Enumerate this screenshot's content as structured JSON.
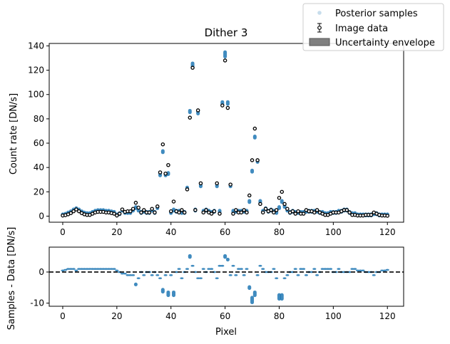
{
  "chart_data": [
    {
      "type": "scatter",
      "title": "Dither 3",
      "ylabel": "Count rate [DN/s]",
      "xlabel": "",
      "xlim": [
        -5,
        126
      ],
      "ylim": [
        -5,
        142
      ],
      "xticks": [
        0,
        20,
        40,
        60,
        80,
        100,
        120
      ],
      "yticks": [
        0,
        20,
        40,
        60,
        80,
        100,
        120,
        140
      ],
      "grid": false,
      "legend": {
        "placement": "top-right",
        "entries": [
          "Posterior samples",
          "Image data",
          "Uncertainty envelope"
        ]
      },
      "series": [
        {
          "name": "Image data",
          "x": [
            0,
            1,
            2,
            3,
            4,
            5,
            6,
            7,
            8,
            9,
            10,
            11,
            12,
            13,
            14,
            15,
            16,
            17,
            18,
            19,
            20,
            21,
            22,
            23,
            24,
            25,
            26,
            27,
            28,
            29,
            30,
            31,
            32,
            33,
            34,
            35,
            36,
            37,
            38,
            39,
            40,
            41,
            42,
            43,
            44,
            45,
            46,
            47,
            48,
            49,
            50,
            51,
            52,
            53,
            54,
            55,
            56,
            57,
            58,
            59,
            60,
            61,
            62,
            63,
            64,
            65,
            66,
            67,
            68,
            69,
            70,
            71,
            72,
            73,
            74,
            75,
            76,
            77,
            78,
            79,
            80,
            81,
            82,
            83,
            84,
            85,
            86,
            87,
            88,
            89,
            90,
            91,
            92,
            93,
            94,
            95,
            96,
            97,
            98,
            99,
            100,
            101,
            102,
            103,
            104,
            105,
            106,
            107,
            108,
            109,
            110,
            111,
            112,
            113,
            114,
            115,
            116,
            117,
            118,
            119,
            120
          ],
          "y": [
            0.5,
            0.8,
            1.5,
            2.5,
            4,
            5.5,
            4,
            2.5,
            1.5,
            1,
            1,
            2,
            3,
            3.5,
            3.5,
            3.5,
            3,
            3,
            2.5,
            2,
            0.5,
            2,
            5.5,
            3.5,
            4,
            4,
            6,
            11,
            7,
            3,
            5,
            3,
            3,
            6,
            3,
            8,
            36,
            59,
            35,
            42,
            4,
            12,
            4,
            3,
            5,
            3,
            22,
            81,
            122,
            5,
            87,
            27,
            3,
            5,
            3,
            2,
            4,
            27,
            2,
            91,
            128,
            89,
            26,
            2,
            5,
            3,
            3,
            5,
            3,
            17,
            46,
            72,
            46,
            10,
            3,
            6,
            4,
            5,
            3,
            5,
            15,
            20,
            10,
            6,
            3,
            4,
            2,
            4,
            2,
            2,
            5,
            4,
            4,
            3,
            5,
            3,
            2,
            1,
            1,
            2,
            3,
            3,
            3,
            4,
            5,
            5,
            3,
            1,
            1,
            0.5,
            0.5,
            0.5,
            1,
            1,
            1,
            3,
            2,
            1,
            0.5,
            0.5,
            0.3
          ]
        },
        {
          "name": "Posterior samples",
          "x": [
            0,
            1,
            2,
            3,
            4,
            5,
            6,
            7,
            8,
            9,
            10,
            11,
            12,
            13,
            14,
            15,
            16,
            17,
            18,
            19,
            20,
            21,
            22,
            23,
            24,
            25,
            26,
            27,
            28,
            29,
            30,
            31,
            32,
            33,
            34,
            35,
            36,
            37,
            38,
            39,
            40,
            41,
            42,
            43,
            44,
            45,
            46,
            47,
            48,
            49,
            50,
            51,
            52,
            53,
            54,
            55,
            56,
            57,
            58,
            59,
            60,
            61,
            62,
            63,
            64,
            65,
            66,
            67,
            68,
            69,
            70,
            71,
            72,
            73,
            74,
            75,
            76,
            77,
            78,
            79,
            80,
            81,
            82,
            83,
            84,
            85,
            86,
            87,
            88,
            89,
            90,
            91,
            92,
            93,
            94,
            95,
            96,
            97,
            98,
            99,
            100,
            101,
            102,
            103,
            104,
            105,
            106,
            107,
            108,
            109,
            110,
            111,
            112,
            113,
            114,
            115,
            116,
            117,
            118,
            119,
            120
          ],
          "y": [
            1,
            1.5,
            2.5,
            3.5,
            5,
            6,
            5,
            3.5,
            2.5,
            2,
            2,
            3,
            4,
            4.5,
            4.5,
            4.5,
            4,
            4,
            3.5,
            3,
            1,
            2,
            5,
            3,
            3,
            3,
            5,
            7,
            5,
            3,
            4,
            3,
            3,
            5,
            3,
            7,
            34,
            53,
            34,
            35,
            3,
            5,
            4,
            4,
            3,
            3,
            23,
            86,
            124,
            5,
            85,
            25,
            4,
            5,
            4,
            3,
            4,
            25,
            4,
            93,
            133,
            93,
            25,
            4,
            4,
            4,
            4,
            4,
            4,
            12,
            37,
            65,
            45,
            12,
            4,
            6,
            4,
            5,
            4,
            3,
            7,
            12,
            8,
            5,
            3,
            4,
            3,
            3,
            3,
            3,
            4,
            4,
            4,
            4,
            4,
            3,
            3,
            2,
            2,
            3,
            3,
            3,
            4,
            4,
            5,
            5,
            3,
            2,
            2,
            1,
            1,
            1,
            1,
            1,
            1,
            2,
            2,
            1,
            1,
            1,
            1
          ]
        }
      ]
    },
    {
      "type": "scatter",
      "title": "",
      "ylabel": "Samples - Data [DN/s]",
      "xlabel": "Pixel",
      "xlim": [
        -5,
        126
      ],
      "ylim": [
        -11,
        8
      ],
      "xticks": [
        0,
        20,
        40,
        60,
        80,
        100,
        120
      ],
      "yticks": [
        -10,
        0
      ],
      "grid": false,
      "reference_line": 0,
      "series": [
        {
          "name": "Samples - Data",
          "x": [
            0,
            1,
            2,
            3,
            4,
            5,
            6,
            7,
            8,
            9,
            10,
            11,
            12,
            13,
            14,
            15,
            16,
            17,
            18,
            19,
            20,
            21,
            22,
            23,
            24,
            25,
            26,
            27,
            28,
            29,
            30,
            31,
            32,
            33,
            34,
            35,
            36,
            37,
            38,
            39,
            40,
            41,
            42,
            43,
            44,
            45,
            46,
            47,
            48,
            49,
            50,
            51,
            52,
            53,
            54,
            55,
            56,
            57,
            58,
            59,
            60,
            61,
            62,
            63,
            64,
            65,
            66,
            67,
            68,
            69,
            70,
            71,
            72,
            73,
            74,
            75,
            76,
            77,
            78,
            79,
            80,
            81,
            82,
            83,
            84,
            85,
            86,
            87,
            88,
            89,
            90,
            91,
            92,
            93,
            94,
            95,
            96,
            97,
            98,
            99,
            100,
            101,
            102,
            103,
            104,
            105,
            106,
            107,
            108,
            109,
            110,
            111,
            112,
            113,
            114,
            115,
            116,
            117,
            118,
            119,
            120
          ],
          "y": [
            0.5,
            0.7,
            1,
            1,
            1,
            0.5,
            1,
            1,
            1,
            1,
            1,
            1,
            1,
            1,
            1,
            1,
            1,
            1,
            1,
            1,
            0.5,
            0,
            -0.5,
            -0.5,
            -1,
            -1,
            -1,
            -4,
            -2,
            0,
            -1,
            0,
            0,
            -1,
            0,
            -1,
            -2,
            -6,
            -1,
            -7,
            -1,
            -7,
            0,
            1,
            -2,
            0,
            1,
            5,
            2,
            0,
            -2,
            -2,
            1,
            0,
            1,
            1,
            0,
            -2,
            2,
            2,
            5,
            4,
            -1,
            2,
            -1,
            1,
            1,
            -1,
            1,
            -5,
            -9,
            -7,
            -1,
            2,
            1,
            0,
            0,
            0,
            1,
            -2,
            -8,
            -8,
            -2,
            -1,
            0,
            0,
            1,
            -1,
            1,
            1,
            -1,
            0,
            0,
            1,
            -1,
            0,
            1,
            1,
            1,
            1,
            0,
            0,
            1,
            0,
            0,
            0,
            0,
            1,
            1,
            0.5,
            0.5,
            0.5,
            0,
            0,
            0,
            -1,
            0,
            0,
            0.5,
            0.5,
            0.7
          ]
        }
      ]
    }
  ],
  "colors": {
    "sample": "#1f77b4",
    "data_edge": "#000000",
    "data_face": "#ffffff",
    "envelope": "#808080"
  },
  "legend": {
    "samples_label": "Posterior samples",
    "data_label": "Image data",
    "envelope_label": "Uncertainty envelope"
  }
}
